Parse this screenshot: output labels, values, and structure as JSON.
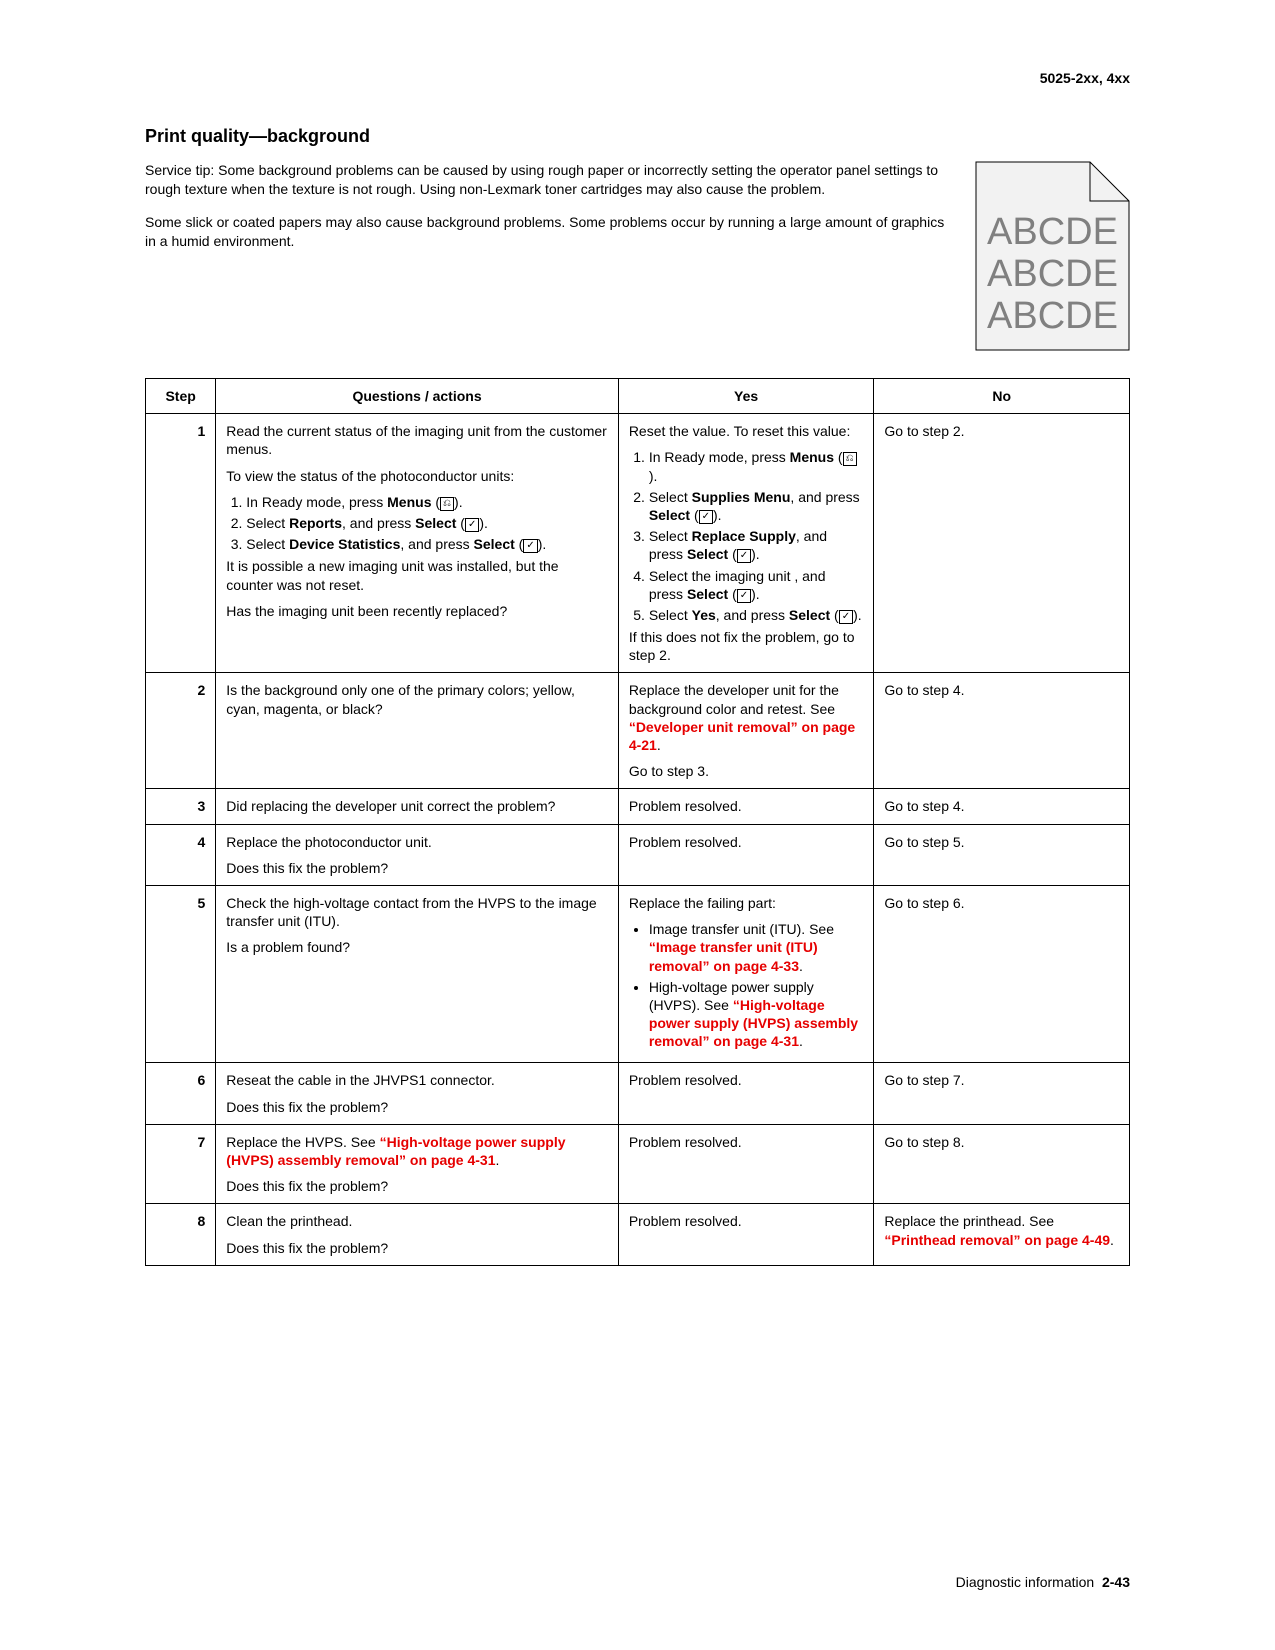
{
  "doc_header": "5025-2xx, 4xx",
  "section_title": "Print quality—background",
  "intro_p1": "Service tip: Some background problems can be caused by using rough paper or incorrectly setting the operator panel settings to rough texture when the texture is not rough. Using non-Lexmark toner cartridges may also cause the problem.",
  "intro_p2": "Some slick or coated papers may also cause background problems. Some problems occur by running a large amount of graphics in a humid environment.",
  "sample_line": "ABCDE",
  "table": {
    "headers": {
      "step": "Step",
      "q": "Questions / actions",
      "yes": "Yes",
      "no": "No"
    },
    "rows": [
      {
        "step": "1",
        "q_html": "<p class='cell-p'>Read the current status of the imaging unit from the customer menus.</p><p class='cell-p'>To view the status of the photoconductor units:</p><ol class='tight'><li>In Ready mode, press <span class='b'>Menus</span> (<span class='icon-box'>⎌</span>).</li><li>Select <span class='b'>Reports</span>, and press <span class='b'>Select</span> (<span class='icon-box'>✓</span>).</li><li>Select <span class='b'>Device Statistics</span>, and press <span class='b'>Select</span> (<span class='icon-box'>✓</span>).</li></ol><p class='cell-p'>It is possible a new imaging unit was installed, but the counter was not reset.</p><p class='cell-p'>Has the imaging unit been recently replaced?</p>",
        "yes_html": "<p class='cell-p'>Reset the value. To reset this value:</p><ol class='tight'><li>In Ready mode, press <span class='b'>Menus</span> (<span class='icon-box'>⎌</span>).</li><li>Select <span class='b'>Supplies Menu</span>, and press <span class='b'>Select</span> (<span class='icon-box'>✓</span>).</li><li>Select <span class='b'>Replace Supply</span>, and press <span class='b'>Select</span> (<span class='icon-box'>✓</span>).</li><li>Select the imaging unit , and press <span class='b'>Select</span> (<span class='icon-box'>✓</span>).</li><li>Select <span class='b'>Yes</span>, and press <span class='b'>Select</span> (<span class='icon-box'>✓</span>).</li></ol><p class='cell-p'>If this does not fix the problem, go to step 2.</p>",
        "no_html": "Go to step 2."
      },
      {
        "step": "2",
        "q_html": "Is the background only one of the primary colors; yellow, cyan, magenta, or black?",
        "yes_html": "<p class='cell-p'>Replace the developer unit for the background color and retest. See <span class='link'>&ldquo;Developer unit removal&rdquo; on page 4-21</span>.</p><p class='cell-p'>Go to step 3.</p>",
        "no_html": "Go to step 4."
      },
      {
        "step": "3",
        "q_html": "Did replacing the developer unit correct the problem?",
        "yes_html": "Problem resolved.",
        "no_html": "Go to step 4."
      },
      {
        "step": "4",
        "q_html": "<p class='cell-p'>Replace the photoconductor unit.</p><p class='cell-p'>Does this fix the problem?</p>",
        "yes_html": "Problem resolved.",
        "no_html": "Go to step 5."
      },
      {
        "step": "5",
        "q_html": "<p class='cell-p'>Check the high-voltage contact from the HVPS to the image transfer unit (ITU).</p><p class='cell-p'>Is a problem found?</p>",
        "yes_html": "<p class='cell-p'>Replace the failing part:</p><ul class='tight'><li>Image transfer unit (ITU). See <span class='link'>&ldquo;Image transfer unit (ITU) removal&rdquo; on page 4-33</span>.</li><li>High-voltage power supply (HVPS). See <span class='link'>&ldquo;High-voltage power supply (HVPS) assembly removal&rdquo; on page 4-31</span>.</li></ul>",
        "no_html": "Go to step 6."
      },
      {
        "step": "6",
        "q_html": "<p class='cell-p'>Reseat the cable in the JHVPS1 connector.</p><p class='cell-p'>Does this fix the problem?</p>",
        "yes_html": "Problem resolved.",
        "no_html": "Go to step 7."
      },
      {
        "step": "7",
        "q_html": "<p class='cell-p'>Replace the HVPS. See <span class='link'>&ldquo;High-voltage power supply (HVPS) assembly removal&rdquo; on page 4-31</span>.</p><p class='cell-p'>Does this fix the problem?</p>",
        "yes_html": "Problem resolved.",
        "no_html": "Go to step 8."
      },
      {
        "step": "8",
        "q_html": "<p class='cell-p'>Clean the printhead.</p><p class='cell-p'>Does this fix the problem?</p>",
        "yes_html": "Problem resolved.",
        "no_html": "Replace the printhead. See <span class='link'>&ldquo;Printhead removal&rdquo; on page 4-49</span>."
      }
    ]
  },
  "footer_label": "Diagnostic information",
  "footer_page": "2-43",
  "colors": {
    "link": "#e60000",
    "text": "#000000",
    "sample_fill": "#f2f2f2",
    "sample_text": "#808080"
  }
}
